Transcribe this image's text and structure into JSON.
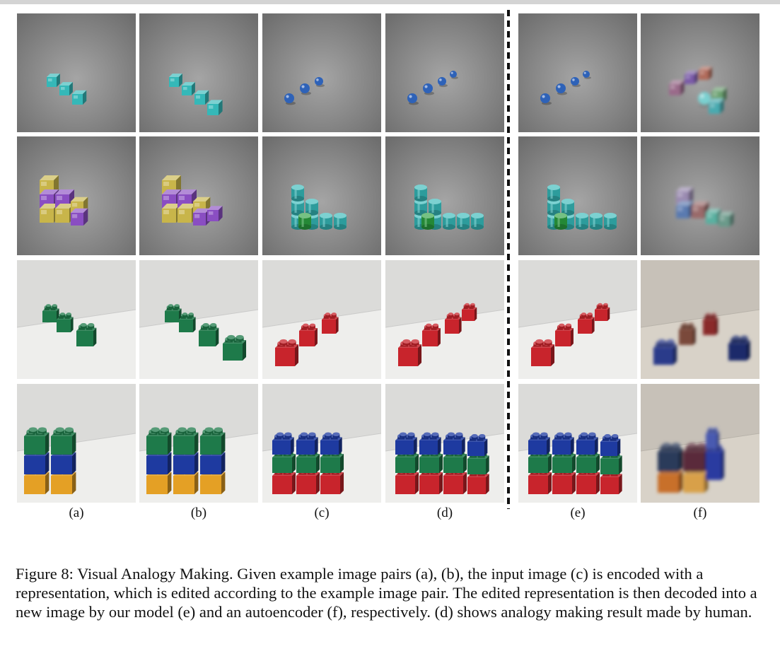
{
  "figure": {
    "columns": [
      {
        "label": "(a)"
      },
      {
        "label": "(b)"
      },
      {
        "label": "(c)"
      },
      {
        "label": "(d)"
      },
      {
        "label": "(e)"
      },
      {
        "label": "(f)"
      }
    ],
    "rows": [
      {
        "scene": "synthetic",
        "content": "three teal cubes in a diagonal line / three blue spheres"
      },
      {
        "scene": "synthetic",
        "content": "yellow and purple cube staircase / teal cylinder staircase"
      },
      {
        "scene": "real",
        "content": "green LEGO bricks / red LEGO bricks"
      },
      {
        "scene": "real",
        "content": "green, blue and yellow LEGO stacks / red, green and blue LEGO stacks"
      }
    ]
  },
  "caption": {
    "text": "Figure 8: Visual Analogy Making. Given example image pairs (a), (b), the input image (c) is encoded with a representation, which is edited according to the example image pair. The edited representation is then decoded into a new image by our model (e) and an autoencoder (f), respectively. (d) shows analogy making result made by human."
  },
  "colors": {
    "gray_background": "#8e8e8e",
    "white_background": "#e8e8e6",
    "teal": "#35b8b8",
    "blue": "#2e62b8",
    "yellow": "#c8b54a",
    "purple": "#8a4ec2",
    "lego_green": "#1e7a4a",
    "lego_red": "#c8242c",
    "lego_blue": "#1e3aa0",
    "lego_yellow": "#e4a025"
  }
}
